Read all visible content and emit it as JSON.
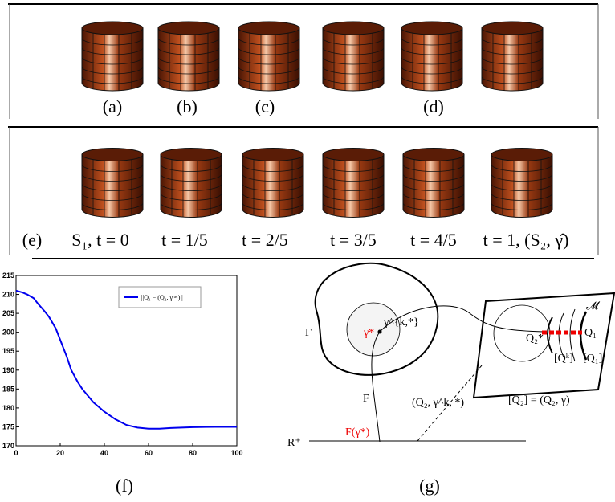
{
  "panel_top": {
    "labels": [
      "(a)",
      "(b)",
      "(c)",
      "(d)"
    ]
  },
  "panel_bottom": {
    "labels": [
      "(e)",
      "S₁, t = 0",
      "t = 1/5",
      "t = 2/5",
      "t = 3/5",
      "t = 4/5",
      "t = 1, (S₂, γ̂)"
    ]
  },
  "chart_data": {
    "type": "line",
    "x": [
      0,
      3,
      5,
      8,
      10,
      13,
      15,
      18,
      20,
      23,
      25,
      28,
      30,
      35,
      40,
      45,
      50,
      55,
      60,
      65,
      70,
      80,
      90,
      100
    ],
    "series": [
      {
        "name": "||Q₁ − (Q₂, γⁱᵗᵉʳ)||",
        "color": "#0000ee",
        "values": [
          211,
          210.5,
          210,
          209,
          207.5,
          205.5,
          204,
          201,
          198,
          193.5,
          190,
          186.8,
          185,
          181.5,
          179,
          177,
          175.5,
          174.8,
          174.5,
          174.5,
          174.7,
          174.9,
          175,
          175
        ]
      }
    ],
    "xlim": [
      0,
      100
    ],
    "ylim": [
      170,
      215
    ],
    "xticks": [
      0,
      20,
      40,
      60,
      80,
      100
    ],
    "yticks": [
      170,
      175,
      180,
      185,
      190,
      195,
      200,
      205,
      210,
      215
    ],
    "grid": false
  },
  "diagram": {
    "labels": {
      "gamma_set": "Γ",
      "gamma_star": "γ*",
      "gamma_k": "γ^{k,*}",
      "F": "F",
      "R": "R⁺",
      "F_gamma": "F(γ*)",
      "q2_gk": "(Q₂, γ^k, *)",
      "q2_class": "[Q₂] = (Q₂, γ)",
      "M": "𝓜",
      "q2_star": "Q₂*",
      "q1": "Q₁",
      "qk": "[Qᵏ]",
      "q1_class": "[Q₁]"
    }
  },
  "captions": {
    "f": "(f)",
    "g": "(g)"
  }
}
